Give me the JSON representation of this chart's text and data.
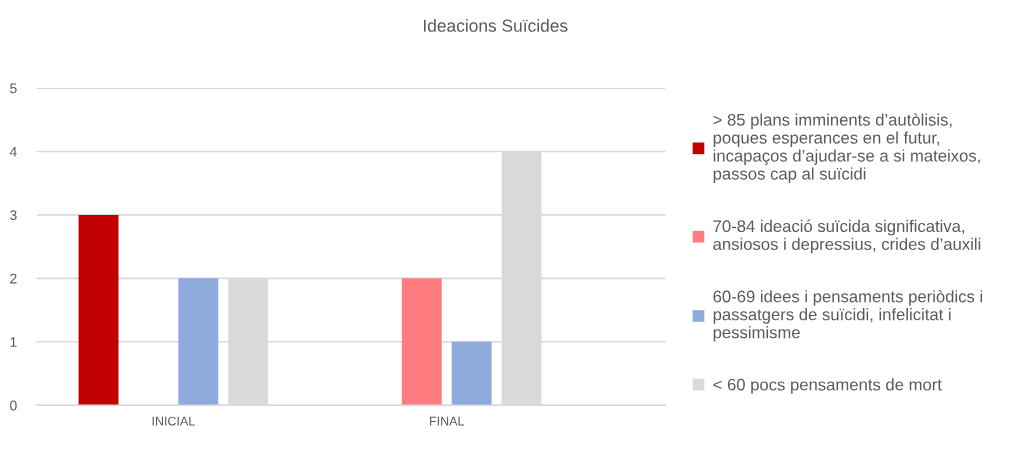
{
  "chart_data": {
    "type": "bar",
    "title": "Ideacions Suïcides",
    "categories": [
      "INICIAL",
      "FINAL"
    ],
    "series": [
      {
        "name": "> 85 plans imminents d’autòlisis,\npoques esperances en el futur,\nincapaços d’ajudar-se a si mateixos,\npassos cap al suïcidi",
        "color": "#c00000",
        "values": [
          3,
          null
        ]
      },
      {
        "name": "70-84 ideació suïcida significativa,\nansiosos i depressius, crides d’auxili",
        "color": "#ff7c80",
        "values": [
          null,
          2
        ]
      },
      {
        "name": "60-69 idees i pensaments periòdics i\npassatgers de suïcidi, infelicitat i\npessimisme",
        "color": "#8faadc",
        "values": [
          2,
          1
        ]
      },
      {
        "name": "< 60 pocs pensaments de mort",
        "color": "#d9d9d9",
        "values": [
          2,
          4
        ]
      }
    ],
    "ylim": [
      0,
      5
    ],
    "yticks": [
      0,
      1,
      2,
      3,
      4,
      5
    ],
    "grid": "y",
    "legend": "right"
  }
}
